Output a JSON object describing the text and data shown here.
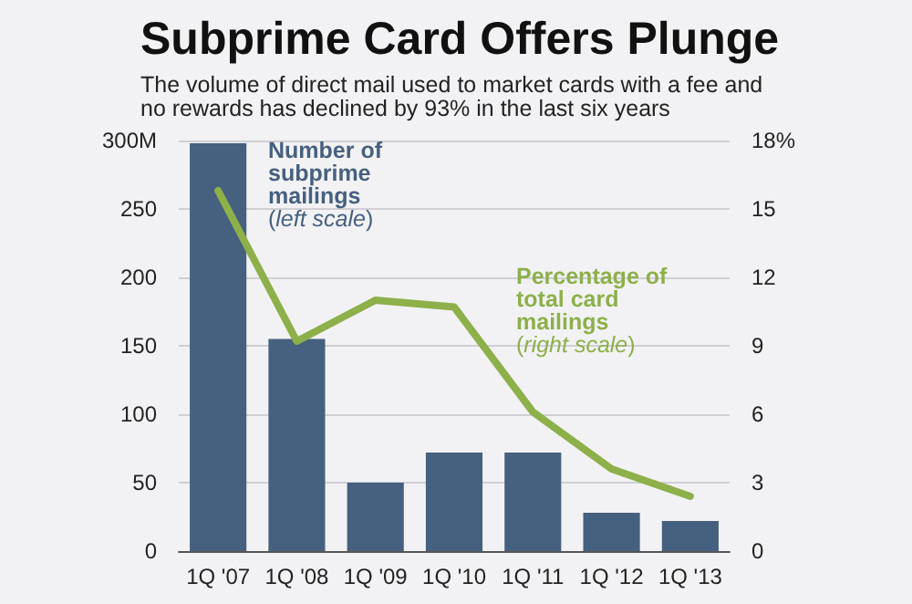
{
  "chart_data": {
    "type": "bar",
    "title": "Subprime Card Offers Plunge",
    "subtitle": "The volume of direct mail used to market cards with a fee and no rewards has declined by 93% in the last six years",
    "categories": [
      "1Q '07",
      "1Q '08",
      "1Q '09",
      "1Q '10",
      "1Q '11",
      "1Q '12",
      "1Q '13"
    ],
    "series": [
      {
        "name": "Number of subprime mailings (left scale)",
        "color": "#46607f",
        "values": [
          298,
          155,
          50,
          72,
          72,
          28,
          22
        ]
      },
      {
        "name": "Percentage of total card mailings (right scale)",
        "type": "line",
        "axis": "y2",
        "color": "#8db04a",
        "values": [
          15.8,
          9.2,
          11.0,
          10.7,
          6.1,
          3.6,
          2.4
        ]
      }
    ],
    "ylim": [
      0,
      300
    ],
    "yticks": [
      0,
      50,
      100,
      150,
      200,
      250,
      {
        "value": 300,
        "label": "300M"
      }
    ],
    "y2lim": [
      0,
      18
    ],
    "y2ticks": [
      0,
      3,
      6,
      9,
      12,
      15,
      {
        "value": 18,
        "label": "18%"
      }
    ],
    "grid": "y",
    "legend": false,
    "marker": "none",
    "line_style": "solid"
  }
}
